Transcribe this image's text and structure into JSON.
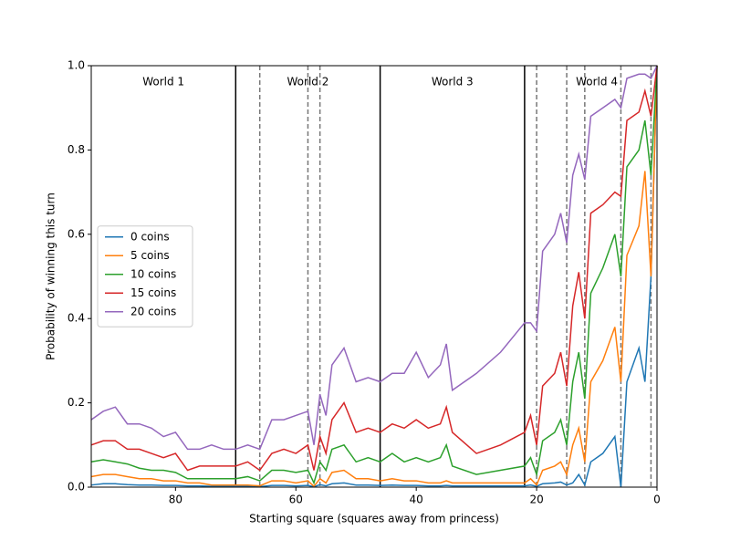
{
  "chart_data": {
    "type": "line",
    "xlabel": "Starting square (squares away from princess)",
    "ylabel": "Probability of winning this turn",
    "x": [
      94,
      92,
      90,
      88,
      86,
      84,
      82,
      80,
      78,
      76,
      74,
      72,
      70,
      68,
      66,
      64,
      62,
      60,
      58,
      57,
      56,
      55,
      54,
      52,
      50,
      48,
      46,
      44,
      42,
      40,
      38,
      36,
      35,
      34,
      30,
      26,
      22,
      21,
      20,
      19,
      17,
      16,
      15,
      14,
      13,
      12,
      11,
      9,
      7,
      6,
      5,
      3,
      2,
      1,
      0
    ],
    "series": [
      {
        "name": "0 coins",
        "color": "#1f77b4",
        "values": [
          0.005,
          0.008,
          0.008,
          0.006,
          0.005,
          0.005,
          0.004,
          0.004,
          0.003,
          0.003,
          0.002,
          0.002,
          0.002,
          0.002,
          0.001,
          0.004,
          0.004,
          0.003,
          0.004,
          0.001,
          0.006,
          0.003,
          0.008,
          0.01,
          0.005,
          0.005,
          0.004,
          0.005,
          0.004,
          0.004,
          0.003,
          0.003,
          0.004,
          0.003,
          0.003,
          0.003,
          0.003,
          0.005,
          0.002,
          0.008,
          0.01,
          0.012,
          0.005,
          0.01,
          0.03,
          0.005,
          0.06,
          0.08,
          0.12,
          0,
          0.25,
          0.33,
          0.25,
          0.5,
          1.0
        ]
      },
      {
        "name": "5 coins",
        "color": "#ff7f0e",
        "values": [
          0.025,
          0.03,
          0.03,
          0.025,
          0.02,
          0.02,
          0.015,
          0.015,
          0.01,
          0.01,
          0.005,
          0.005,
          0.005,
          0.005,
          0.003,
          0.015,
          0.015,
          0.01,
          0.015,
          0.002,
          0.02,
          0.01,
          0.035,
          0.04,
          0.02,
          0.02,
          0.015,
          0.02,
          0.015,
          0.015,
          0.01,
          0.01,
          0.015,
          0.01,
          0.01,
          0.01,
          0.01,
          0.02,
          0.005,
          0.04,
          0.05,
          0.06,
          0.03,
          0.1,
          0.14,
          0.06,
          0.25,
          0.3,
          0.38,
          0.25,
          0.55,
          0.62,
          0.75,
          0.5,
          1.0
        ]
      },
      {
        "name": "10 coins",
        "color": "#2ca02c",
        "values": [
          0.06,
          0.065,
          0.06,
          0.055,
          0.045,
          0.04,
          0.04,
          0.035,
          0.02,
          0.02,
          0.02,
          0.02,
          0.02,
          0.025,
          0.015,
          0.04,
          0.04,
          0.035,
          0.04,
          0.01,
          0.06,
          0.04,
          0.09,
          0.1,
          0.06,
          0.07,
          0.06,
          0.08,
          0.06,
          0.07,
          0.06,
          0.07,
          0.1,
          0.05,
          0.03,
          0.04,
          0.05,
          0.07,
          0.03,
          0.11,
          0.13,
          0.16,
          0.1,
          0.25,
          0.32,
          0.21,
          0.46,
          0.52,
          0.6,
          0.5,
          0.76,
          0.8,
          0.87,
          0.74,
          1.0
        ]
      },
      {
        "name": "15 coins",
        "color": "#d62728",
        "values": [
          0.1,
          0.11,
          0.11,
          0.09,
          0.09,
          0.08,
          0.07,
          0.08,
          0.04,
          0.05,
          0.05,
          0.05,
          0.05,
          0.06,
          0.04,
          0.08,
          0.09,
          0.08,
          0.1,
          0.04,
          0.12,
          0.08,
          0.16,
          0.2,
          0.13,
          0.14,
          0.13,
          0.15,
          0.14,
          0.16,
          0.14,
          0.15,
          0.19,
          0.13,
          0.08,
          0.1,
          0.13,
          0.17,
          0.1,
          0.24,
          0.27,
          0.32,
          0.24,
          0.43,
          0.51,
          0.4,
          0.65,
          0.67,
          0.7,
          0.69,
          0.87,
          0.89,
          0.94,
          0.88,
          1.0
        ]
      },
      {
        "name": "20 coins",
        "color": "#9467bd",
        "values": [
          0.16,
          0.18,
          0.19,
          0.15,
          0.15,
          0.14,
          0.12,
          0.13,
          0.09,
          0.09,
          0.1,
          0.09,
          0.09,
          0.1,
          0.09,
          0.16,
          0.16,
          0.17,
          0.18,
          0.1,
          0.22,
          0.17,
          0.29,
          0.33,
          0.25,
          0.26,
          0.25,
          0.27,
          0.27,
          0.32,
          0.26,
          0.29,
          0.34,
          0.23,
          0.27,
          0.32,
          0.39,
          0.39,
          0.37,
          0.56,
          0.6,
          0.65,
          0.58,
          0.74,
          0.79,
          0.73,
          0.88,
          0.9,
          0.92,
          0.9,
          0.97,
          0.98,
          0.98,
          0.97,
          1.0
        ]
      }
    ],
    "xlim": [
      94,
      0
    ],
    "xticks": [
      80,
      60,
      40,
      20,
      0
    ],
    "ylim": [
      0,
      1
    ],
    "yticks": [
      {
        "value": 0,
        "label": "0.0"
      },
      {
        "value": 0.2,
        "label": "0.2"
      },
      {
        "value": 0.4,
        "label": "0.4"
      },
      {
        "value": 0.6,
        "label": "0.6"
      },
      {
        "value": 0.8,
        "label": "0.8"
      },
      {
        "value": 1,
        "label": "1.0"
      }
    ],
    "world_boundaries": [
      70,
      46,
      22
    ],
    "dashed_lines": [
      66,
      58,
      56,
      20,
      15,
      12,
      6,
      1
    ],
    "world_labels": [
      {
        "text": "World 1",
        "x": 82
      },
      {
        "text": "World 2",
        "x": 58
      },
      {
        "text": "World 3",
        "x": 34
      },
      {
        "text": "World 4",
        "x": 10
      }
    ],
    "legend": "center left"
  }
}
